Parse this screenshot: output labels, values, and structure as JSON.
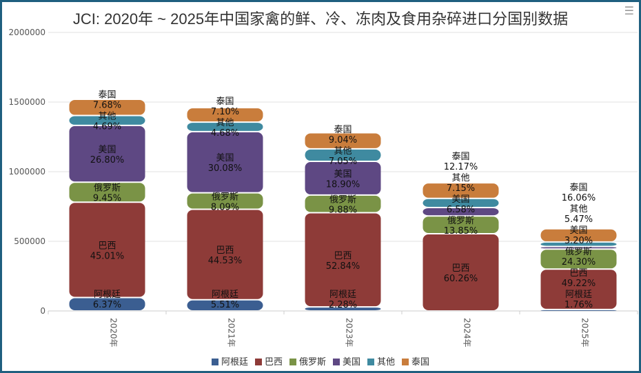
{
  "title": "JCI: 2020年 ~ 2025年中国家禽的鲜、冷、冻肉及食用杂碎进口分国别数据",
  "menu_icon": "hamburger-icon",
  "chart_data": {
    "type": "bar",
    "stacked": true,
    "title": "JCI: 2020年 ~ 2025年中国家禽的鲜、冷、冻肉及食用杂碎进口分国别数据",
    "categories": [
      "2020年",
      "2021年",
      "2023年",
      "2024年",
      "2025年"
    ],
    "ylim": [
      0,
      2000000
    ],
    "yticks": [
      "0",
      "500000",
      "1000000",
      "1500000",
      "2000000"
    ],
    "grid": true,
    "legend": "bottom",
    "series": [
      {
        "name": "阿根廷",
        "color": "#3b5e91",
        "values": [
          96800,
          80400,
          29200,
          0,
          10400
        ],
        "labels": [
          "6.37%",
          "5.51%",
          "2.28%",
          "",
          "1.76%"
        ]
      },
      {
        "name": "巴西",
        "color": "#8e3b38",
        "values": [
          684200,
          650100,
          676400,
          554400,
          290400
        ],
        "labels": [
          "45.01%",
          "44.53%",
          "52.84%",
          "60.26%",
          "49.22%"
        ]
      },
      {
        "name": "俄罗斯",
        "color": "#7a9346",
        "values": [
          143600,
          118100,
          126500,
          127400,
          143400
        ],
        "labels": [
          "9.45%",
          "8.09%",
          "9.88%",
          "13.85%",
          "24.30%"
        ]
      },
      {
        "name": "美国",
        "color": "#5e4883",
        "values": [
          407400,
          439200,
          241900,
          60500,
          18900
        ],
        "labels": [
          "26.80%",
          "30.08%",
          "18.90%",
          "6.58%",
          "3.20%"
        ]
      },
      {
        "name": "其他",
        "color": "#3f8aa0",
        "values": [
          71300,
          68300,
          90200,
          65800,
          32300
        ],
        "labels": [
          "4.69%",
          "4.68%",
          "7.05%",
          "7.15%",
          "5.47%"
        ]
      },
      {
        "name": "泰国",
        "color": "#c97d3c",
        "values": [
          116700,
          103700,
          115700,
          112000,
          94800
        ],
        "labels": [
          "7.68%",
          "7.10%",
          "9.04%",
          "12.17%",
          "16.06%"
        ]
      }
    ]
  }
}
